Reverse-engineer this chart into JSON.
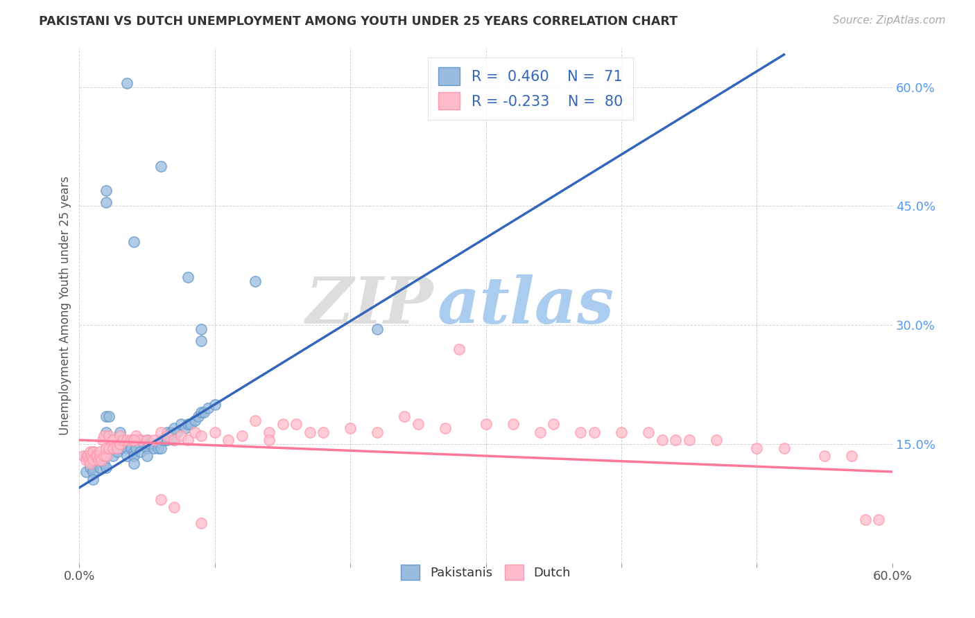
{
  "title": "PAKISTANI VS DUTCH UNEMPLOYMENT AMONG YOUTH UNDER 25 YEARS CORRELATION CHART",
  "source": "Source: ZipAtlas.com",
  "ylabel": "Unemployment Among Youth under 25 years",
  "xlim": [
    0.0,
    0.6
  ],
  "ylim": [
    0.0,
    0.65
  ],
  "pakistani_R": 0.46,
  "pakistani_N": 71,
  "dutch_R": -0.233,
  "dutch_N": 80,
  "blue_color": "#99BBDD",
  "blue_edge_color": "#6699CC",
  "pink_color": "#FFBBCC",
  "pink_edge_color": "#FF99AA",
  "blue_line_color": "#3366BB",
  "pink_line_color": "#FF7799",
  "zip_watermark_color": "#DDDDDD",
  "atlas_watermark_color": "#AACCEE",
  "pakistani_x": [
    0.035,
    0.02,
    0.06,
    0.02,
    0.04,
    0.08,
    0.09,
    0.09,
    0.13,
    0.22,
    0.005,
    0.005,
    0.008,
    0.01,
    0.01,
    0.01,
    0.01,
    0.01,
    0.01,
    0.012,
    0.015,
    0.015,
    0.018,
    0.02,
    0.02,
    0.02,
    0.02,
    0.022,
    0.025,
    0.025,
    0.028,
    0.03,
    0.03,
    0.032,
    0.035,
    0.035,
    0.038,
    0.04,
    0.04,
    0.04,
    0.04,
    0.042,
    0.045,
    0.045,
    0.048,
    0.05,
    0.05,
    0.05,
    0.052,
    0.055,
    0.055,
    0.058,
    0.06,
    0.06,
    0.062,
    0.065,
    0.065,
    0.068,
    0.07,
    0.07,
    0.072,
    0.075,
    0.078,
    0.08,
    0.082,
    0.085,
    0.088,
    0.09,
    0.092,
    0.095,
    0.1
  ],
  "pakistani_y": [
    0.605,
    0.47,
    0.5,
    0.455,
    0.405,
    0.36,
    0.295,
    0.28,
    0.355,
    0.295,
    0.135,
    0.115,
    0.12,
    0.14,
    0.13,
    0.125,
    0.12,
    0.115,
    0.105,
    0.13,
    0.135,
    0.12,
    0.125,
    0.185,
    0.165,
    0.135,
    0.12,
    0.185,
    0.145,
    0.135,
    0.14,
    0.165,
    0.145,
    0.15,
    0.145,
    0.135,
    0.145,
    0.155,
    0.14,
    0.135,
    0.125,
    0.145,
    0.155,
    0.14,
    0.15,
    0.155,
    0.145,
    0.135,
    0.15,
    0.15,
    0.145,
    0.145,
    0.155,
    0.145,
    0.155,
    0.165,
    0.155,
    0.165,
    0.17,
    0.155,
    0.165,
    0.175,
    0.17,
    0.175,
    0.175,
    0.18,
    0.185,
    0.19,
    0.19,
    0.195,
    0.2
  ],
  "dutch_x": [
    0.003,
    0.005,
    0.006,
    0.007,
    0.008,
    0.008,
    0.009,
    0.01,
    0.01,
    0.012,
    0.013,
    0.014,
    0.015,
    0.015,
    0.016,
    0.017,
    0.018,
    0.018,
    0.02,
    0.02,
    0.022,
    0.022,
    0.025,
    0.025,
    0.028,
    0.03,
    0.03,
    0.032,
    0.035,
    0.038,
    0.04,
    0.042,
    0.045,
    0.05,
    0.055,
    0.06,
    0.065,
    0.07,
    0.075,
    0.08,
    0.085,
    0.09,
    0.1,
    0.11,
    0.12,
    0.13,
    0.14,
    0.15,
    0.16,
    0.17,
    0.18,
    0.2,
    0.22,
    0.24,
    0.25,
    0.27,
    0.28,
    0.3,
    0.32,
    0.34,
    0.35,
    0.37,
    0.38,
    0.4,
    0.42,
    0.43,
    0.44,
    0.45,
    0.47,
    0.5,
    0.52,
    0.55,
    0.57,
    0.58,
    0.59,
    0.04,
    0.06,
    0.07,
    0.09,
    0.14
  ],
  "dutch_y": [
    0.135,
    0.13,
    0.135,
    0.13,
    0.125,
    0.14,
    0.135,
    0.14,
    0.13,
    0.135,
    0.135,
    0.13,
    0.135,
    0.14,
    0.13,
    0.155,
    0.135,
    0.16,
    0.135,
    0.145,
    0.145,
    0.16,
    0.155,
    0.145,
    0.145,
    0.15,
    0.16,
    0.155,
    0.155,
    0.155,
    0.155,
    0.16,
    0.155,
    0.155,
    0.155,
    0.165,
    0.16,
    0.155,
    0.16,
    0.155,
    0.165,
    0.16,
    0.165,
    0.155,
    0.16,
    0.18,
    0.165,
    0.175,
    0.175,
    0.165,
    0.165,
    0.17,
    0.165,
    0.185,
    0.175,
    0.17,
    0.27,
    0.175,
    0.175,
    0.165,
    0.175,
    0.165,
    0.165,
    0.165,
    0.165,
    0.155,
    0.155,
    0.155,
    0.155,
    0.145,
    0.145,
    0.135,
    0.135,
    0.055,
    0.055,
    0.155,
    0.08,
    0.07,
    0.05,
    0.155
  ],
  "pak_line_x": [
    0.0,
    0.6
  ],
  "pak_line_y_intercept": 0.095,
  "pak_line_slope": 1.05,
  "dutch_line_x": [
    0.0,
    0.6
  ],
  "dutch_line_y_start": 0.155,
  "dutch_line_y_end": 0.115
}
